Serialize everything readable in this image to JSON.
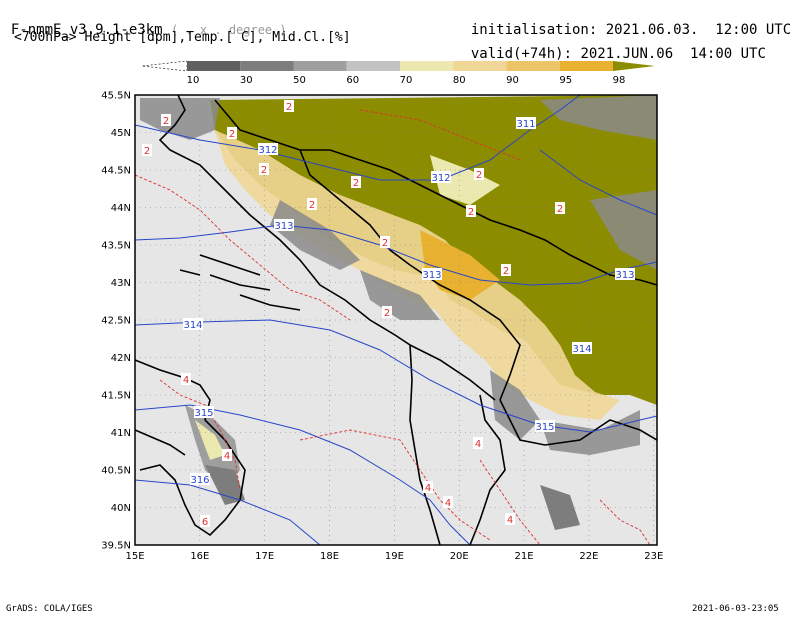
{
  "header": {
    "model": "F-nmmE_v3.9.1-e3km",
    "grid": "( . x . degree )",
    "fields": "<700hPa> Height [dpm],Temp.[ C], Mid.Cl.[%]",
    "init_label": "initialisation:",
    "init_value": "2021.06.03.  12:00 UTC",
    "valid_label": "valid(+74h):",
    "valid_value": "2021.JUN.06  14:00 UTC"
  },
  "colorbar": {
    "ticks": [
      "10",
      "30",
      "50",
      "60",
      "70",
      "80",
      "90",
      "95",
      "98"
    ],
    "colors": [
      "#ffffff",
      "#606060",
      "#7d7d7d",
      "#9e9e9e",
      "#c2c2c2",
      "#ebe8b0",
      "#f0d797",
      "#eec468",
      "#e8b230",
      "#8c8c00"
    ]
  },
  "map": {
    "lat_labels": [
      "45.5N",
      "45N",
      "44.5N",
      "44N",
      "43.5N",
      "43N",
      "42.5N",
      "42N",
      "41.5N",
      "41N",
      "40.5N",
      "40N",
      "39.5N"
    ],
    "lon_labels": [
      "15E",
      "16E",
      "17E",
      "18E",
      "19E",
      "20E",
      "21E",
      "22E",
      "23E"
    ],
    "height_labels": [
      "311",
      "312",
      "312",
      "313",
      "313",
      "313",
      "314",
      "314",
      "315",
      "315",
      "316"
    ],
    "temp_labels": [
      "2",
      "2",
      "2",
      "2",
      "2",
      "2",
      "2",
      "2",
      "2",
      "2",
      "2",
      "2",
      "2",
      "4",
      "4",
      "4",
      "4",
      "4",
      "4",
      "6"
    ],
    "colors": {
      "sea": "#e6e6e6",
      "land_cloud": "#8c8c00",
      "height_contour": "#2846c8",
      "temp_contour": "#e03030",
      "coast": "#000000",
      "grid": "#888888"
    }
  },
  "footer": {
    "left": "GrADS: COLA/IGES",
    "right": "2021-06-03-23:05"
  }
}
